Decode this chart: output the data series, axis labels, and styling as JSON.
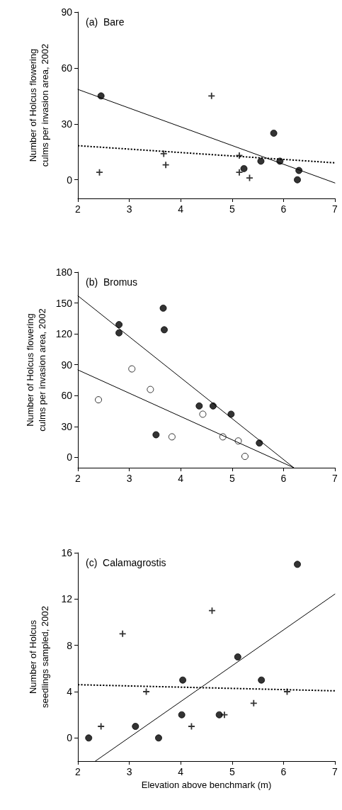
{
  "chart_data": [
    {
      "type": "scatter",
      "title": "(a)  Bare",
      "ylabel": "Number of Holcus flowering culms per invasion area, 2002",
      "xlim": [
        2,
        7
      ],
      "xticks": [
        2,
        3,
        4,
        5,
        6,
        7
      ],
      "ylim": [
        -10,
        90
      ],
      "yticks": [
        0,
        30,
        60,
        90
      ],
      "grid": false,
      "series": [
        {
          "color": "#000000",
          "marker": "circle",
          "x": [
            2.45,
            5.81,
            5.56,
            5.93,
            5.23,
            6.3,
            6.27
          ],
          "values": [
            45,
            25,
            10,
            10,
            6,
            5,
            0
          ]
        },
        {
          "color": "#000000",
          "marker": "cross",
          "x": [
            2.42,
            3.67,
            3.71,
            4.6,
            5.14,
            5.14,
            5.34
          ],
          "values": [
            4,
            14,
            8,
            45,
            13,
            4,
            1
          ]
        },
        {
          "type": "line",
          "color": "#000000",
          "line_style": "solid",
          "x": [
            2,
            7
          ],
          "values": [
            48.5,
            -1.7
          ]
        },
        {
          "type": "line",
          "color": "#000000",
          "line_style": "dotted",
          "x": [
            2,
            7
          ],
          "values": [
            18.3,
            9.1
          ]
        }
      ]
    },
    {
      "type": "scatter",
      "title": "(b)  Bromus",
      "ylabel": "Number of Holcus flowering culms per invasion area, 2002",
      "xlim": [
        2,
        7
      ],
      "xticks": [
        2,
        3,
        4,
        5,
        6,
        7
      ],
      "ylim": [
        -10,
        180
      ],
      "yticks": [
        0,
        30,
        60,
        90,
        120,
        150,
        180
      ],
      "grid": false,
      "series": [
        {
          "color": "#000000",
          "marker": "circle",
          "x": [
            2.8,
            2.8,
            3.66,
            3.68,
            3.52,
            4.36,
            4.63,
            4.98,
            5.53
          ],
          "values": [
            129,
            121,
            145,
            124,
            22,
            50,
            50,
            42,
            14
          ]
        },
        {
          "color": "#ffffff",
          "marker": "circle",
          "x": [
            2.4,
            3.05,
            3.41,
            3.83,
            4.43,
            4.82,
            5.12,
            5.25
          ],
          "values": [
            56,
            86,
            66,
            20,
            42,
            20,
            16,
            1
          ]
        },
        {
          "type": "line",
          "color": "#000000",
          "line_style": "solid",
          "x": [
            2,
            6.2
          ],
          "values": [
            157,
            -10
          ]
        },
        {
          "type": "line",
          "color": "#000000",
          "line_style": "solid",
          "x": [
            2,
            6.2
          ],
          "values": [
            85,
            -10
          ]
        }
      ]
    },
    {
      "type": "scatter",
      "title": "(c)  Calamagrostis",
      "ylabel": "Number of Holcus seedlings sampled, 2002",
      "xlabel": "Elevation above benchmark (m)",
      "xlim": [
        2,
        7
      ],
      "xticks": [
        2,
        3,
        4,
        5,
        6,
        7
      ],
      "ylim": [
        -2,
        16
      ],
      "yticks": [
        0,
        4,
        8,
        12,
        16
      ],
      "grid": false,
      "series": [
        {
          "color": "#000000",
          "marker": "circle",
          "x": [
            2.21,
            3.12,
            3.57,
            4.02,
            4.04,
            4.75,
            5.11,
            5.57,
            6.27
          ],
          "values": [
            0,
            1,
            0,
            2,
            5,
            2,
            7,
            5,
            15
          ]
        },
        {
          "color": "#000000",
          "marker": "cross",
          "x": [
            2.45,
            2.87,
            3.33,
            4.21,
            4.61,
            4.85,
            5.42,
            6.07
          ],
          "values": [
            1,
            9,
            4,
            1,
            11,
            2,
            3,
            4
          ]
        },
        {
          "type": "line",
          "color": "#000000",
          "line_style": "solid",
          "x": [
            2.34,
            7
          ],
          "values": [
            -2,
            12.43
          ]
        },
        {
          "type": "line",
          "color": "#000000",
          "line_style": "dotted",
          "x": [
            2,
            7
          ],
          "values": [
            4.6,
            4.07
          ]
        }
      ]
    }
  ]
}
